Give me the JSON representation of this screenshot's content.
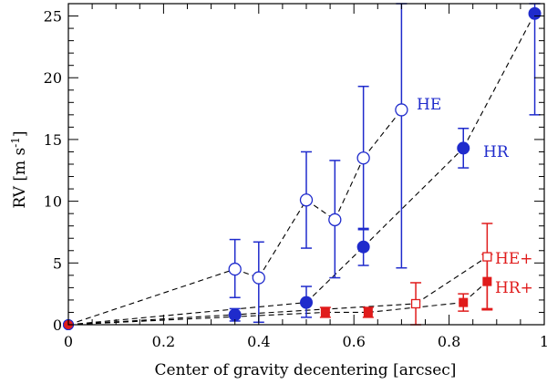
{
  "chart_data": {
    "type": "scatter",
    "title": "",
    "xlabel": "Center of gravity decentering [arcsec]",
    "ylabel": "RV [m s",
    "ylabel_sup": "-1",
    "ylabel_close": "]",
    "xlim": [
      0,
      1
    ],
    "ylim": [
      0,
      26
    ],
    "xticks": [
      0,
      0.2,
      0.4,
      0.6,
      0.8,
      1
    ],
    "xtick_labels": [
      "0",
      "0.2",
      "0.4",
      "0.6",
      "0.8",
      "1"
    ],
    "yticks": [
      0,
      5,
      10,
      15,
      20,
      25
    ],
    "ytick_labels": [
      "0",
      "5",
      "10",
      "15",
      "20",
      "25"
    ],
    "grid": false,
    "series": [
      {
        "name": "HE",
        "label": "HE",
        "color": "#1f2bcc",
        "marker": "open-circle",
        "x": [
          0,
          0.35,
          0.4,
          0.5,
          0.56,
          0.62,
          0.7
        ],
        "y": [
          0,
          4.5,
          3.8,
          10.1,
          8.5,
          13.5,
          17.4
        ],
        "err_low": [
          0,
          2.3,
          3.6,
          3.9,
          4.7,
          5.8,
          12.8
        ],
        "err_high": [
          0,
          2.4,
          2.9,
          3.9,
          4.8,
          5.8,
          8.6
        ],
        "connect": [
          [
            0,
            1
          ],
          [
            1,
            2
          ],
          [
            2,
            3
          ],
          [
            3,
            4
          ],
          [
            4,
            5
          ],
          [
            5,
            6
          ]
        ]
      },
      {
        "name": "HR",
        "label": "HR",
        "color": "#1f2bcc",
        "marker": "filled-circle",
        "x": [
          0,
          0.35,
          0.5,
          0.62,
          0.83,
          0.98
        ],
        "y": [
          0,
          0.8,
          1.8,
          6.3,
          14.3,
          25.2
        ],
        "err_low": [
          0,
          0.5,
          1.2,
          1.5,
          1.6,
          8.2
        ],
        "err_high": [
          0,
          0.5,
          1.3,
          1.5,
          1.6,
          0.8
        ],
        "connect": [
          [
            0,
            2
          ],
          [
            2,
            3
          ],
          [
            3,
            4
          ],
          [
            4,
            5
          ]
        ]
      },
      {
        "name": "HE+",
        "label": "HE+",
        "color": "#e01b1b",
        "marker": "open-square",
        "x": [
          0,
          0.73,
          0.88
        ],
        "y": [
          0,
          1.7,
          5.5
        ],
        "err_low": [
          0,
          1.7,
          4.3
        ],
        "err_high": [
          0,
          1.7,
          2.7
        ],
        "connect": [
          [
            0,
            1
          ],
          [
            1,
            2
          ]
        ]
      },
      {
        "name": "HR+",
        "label": "HR+",
        "color": "#e01b1b",
        "marker": "filled-square",
        "x": [
          0,
          0.54,
          0.63,
          0.83,
          0.88
        ],
        "y": [
          0,
          1.0,
          1.0,
          1.8,
          3.5
        ],
        "err_low": [
          0,
          0.4,
          0.4,
          0.7,
          2.2
        ],
        "err_high": [
          0,
          0.4,
          0.4,
          0.7,
          2.2
        ],
        "connect": [
          [
            0,
            1
          ],
          [
            1,
            2
          ],
          [
            2,
            3
          ],
          [
            3,
            4
          ]
        ]
      }
    ]
  }
}
